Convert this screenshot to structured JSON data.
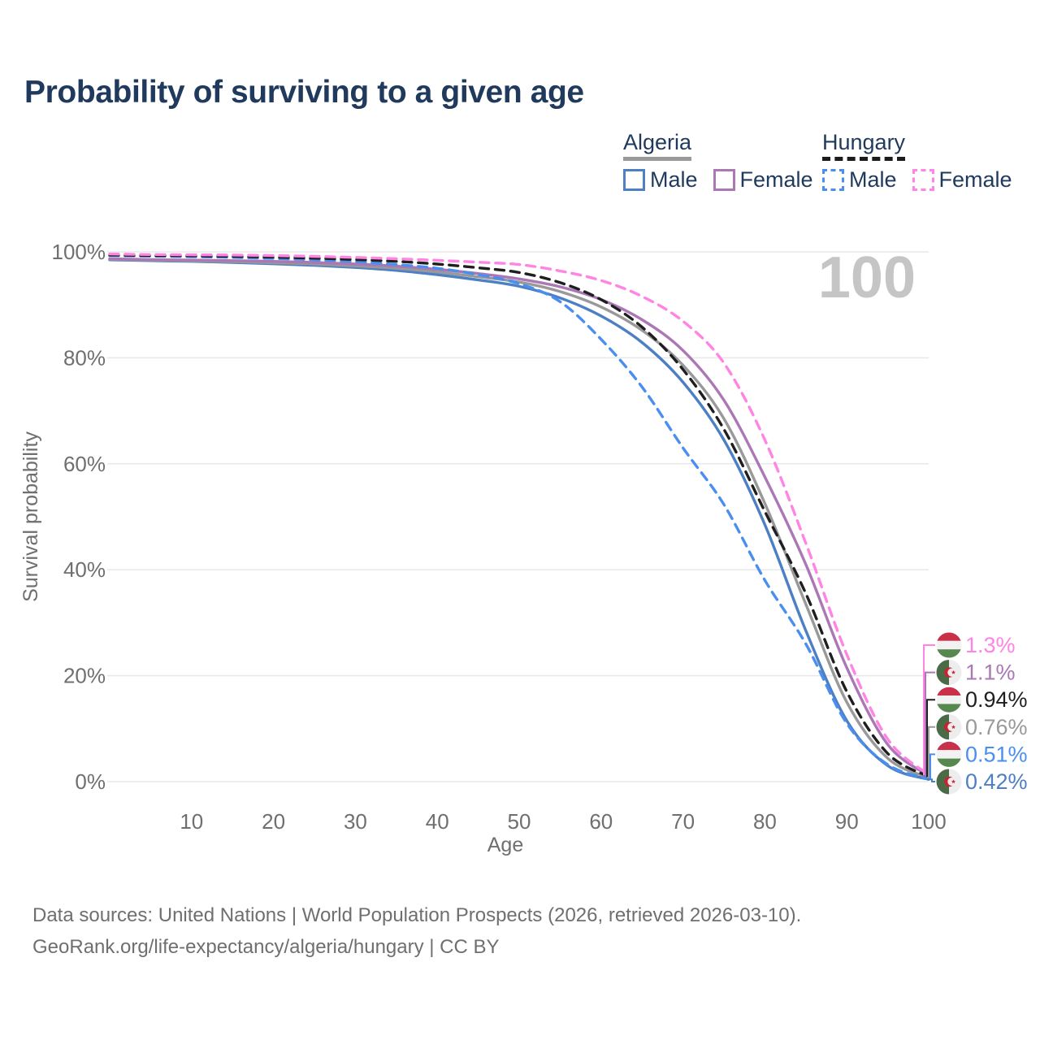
{
  "title": "Probability of surviving to a given age",
  "watermark_age": "100",
  "legend": {
    "groups": [
      {
        "country": "Algeria",
        "line_style": "solid",
        "line_color": "#9a9a9a",
        "items": [
          {
            "label": "Male",
            "color": "#4d7fc4",
            "dashed": false
          },
          {
            "label": "Female",
            "color": "#ab77b5",
            "dashed": false
          }
        ]
      },
      {
        "country": "Hungary",
        "line_style": "dashed",
        "line_color": "#1c1c1c",
        "items": [
          {
            "label": "Male",
            "color": "#4a8ff0",
            "dashed": true
          },
          {
            "label": "Female",
            "color": "#ff84e3",
            "dashed": true
          }
        ]
      }
    ]
  },
  "chart_data": {
    "type": "line",
    "xlabel": "Age",
    "ylabel": "Survival probability",
    "xlim": [
      0,
      100
    ],
    "ylim": [
      0,
      100
    ],
    "grid": "horizontal",
    "x_ticks": [
      10,
      20,
      30,
      40,
      50,
      60,
      70,
      80,
      90,
      100
    ],
    "y_ticks": [
      {
        "value": 0,
        "label": "0%"
      },
      {
        "value": 20,
        "label": "20%"
      },
      {
        "value": 40,
        "label": "40%"
      },
      {
        "value": 60,
        "label": "60%"
      },
      {
        "value": 80,
        "label": "80%"
      },
      {
        "value": 100,
        "label": "100%"
      }
    ],
    "x": [
      0,
      5,
      10,
      15,
      20,
      25,
      30,
      35,
      40,
      45,
      50,
      55,
      60,
      65,
      70,
      75,
      80,
      85,
      90,
      95,
      100
    ],
    "series": [
      {
        "key": "hungary-female",
        "name": "Hungary Female",
        "country": "hungary",
        "sex": "Female",
        "color": "#ff84e3",
        "dashed": true,
        "end_label": "1.3%",
        "values": [
          99.6,
          99.5,
          99.45,
          99.4,
          99.3,
          99.15,
          98.95,
          98.7,
          98.4,
          98.05,
          97.6,
          96.4,
          94.6,
          91.6,
          86.9,
          79.0,
          64.5,
          45.0,
          24.0,
          8.0,
          1.3
        ]
      },
      {
        "key": "algeria-female",
        "name": "Algeria Female",
        "country": "algeria",
        "sex": "Female",
        "color": "#ab77b5",
        "dashed": false,
        "end_label": "1.1%",
        "values": [
          98.7,
          98.55,
          98.45,
          98.35,
          98.2,
          98.0,
          97.7,
          97.3,
          96.7,
          95.9,
          94.9,
          93.4,
          91.0,
          87.2,
          81.4,
          72.0,
          57.5,
          41.0,
          21.5,
          7.0,
          1.1
        ]
      },
      {
        "key": "hungary-both",
        "name": "Hungary Both sexes",
        "country": "hungary",
        "sex": "Both",
        "color": "#1f1f1f",
        "dashed": true,
        "end_label": "0.94%",
        "values": [
          99.4,
          99.3,
          99.25,
          99.15,
          99.0,
          98.8,
          98.55,
          98.2,
          97.7,
          97.0,
          96.1,
          94.2,
          91.0,
          85.8,
          77.8,
          66.5,
          51.0,
          35.5,
          17.0,
          5.3,
          0.94
        ]
      },
      {
        "key": "algeria-both",
        "name": "Algeria Both sexes",
        "country": "algeria",
        "sex": "Both",
        "color": "#999999",
        "dashed": false,
        "end_label": "0.76%",
        "values": [
          98.6,
          98.45,
          98.3,
          98.15,
          97.95,
          97.7,
          97.35,
          96.9,
          96.2,
          95.3,
          94.3,
          92.5,
          89.6,
          85.2,
          78.6,
          68.5,
          52.5,
          33.5,
          15.0,
          4.4,
          0.76
        ]
      },
      {
        "key": "hungary-male",
        "name": "Hungary Male",
        "country": "hungary",
        "sex": "Male",
        "color": "#4a8ff0",
        "dashed": true,
        "end_label": "0.51%",
        "values": [
          99.3,
          99.2,
          99.1,
          98.95,
          98.75,
          98.5,
          98.15,
          97.6,
          96.9,
          95.7,
          94.0,
          90.6,
          83.5,
          74.5,
          63.0,
          52.3,
          38.0,
          26.0,
          11.0,
          3.2,
          0.51
        ]
      },
      {
        "key": "algeria-male",
        "name": "Algeria Male",
        "country": "algeria",
        "sex": "Male",
        "color": "#4d7fc4",
        "dashed": false,
        "end_label": "0.42%",
        "values": [
          98.5,
          98.35,
          98.2,
          98.0,
          97.75,
          97.45,
          97.05,
          96.5,
          95.7,
          94.7,
          93.5,
          91.3,
          87.9,
          82.9,
          75.4,
          64.5,
          48.5,
          28.5,
          11.5,
          3.0,
          0.42
        ]
      }
    ],
    "draw_order": [
      "algeria-male",
      "algeria-both",
      "algeria-female",
      "hungary-male",
      "hungary-both",
      "hungary-female"
    ],
    "flag_colors": {
      "hungary": {
        "red": "#c9304a",
        "white": "#f2f2f2",
        "green": "#57884f"
      },
      "algeria": {
        "green": "#4a6b45",
        "white": "#ededed",
        "red": "#cc2133"
      }
    }
  },
  "footer": {
    "line1": "Data sources: United Nations | World Population Prospects (2026, retrieved 2026-03-10).",
    "line2": "GeoRank.org/life-expectancy/algeria/hungary | CC BY"
  }
}
